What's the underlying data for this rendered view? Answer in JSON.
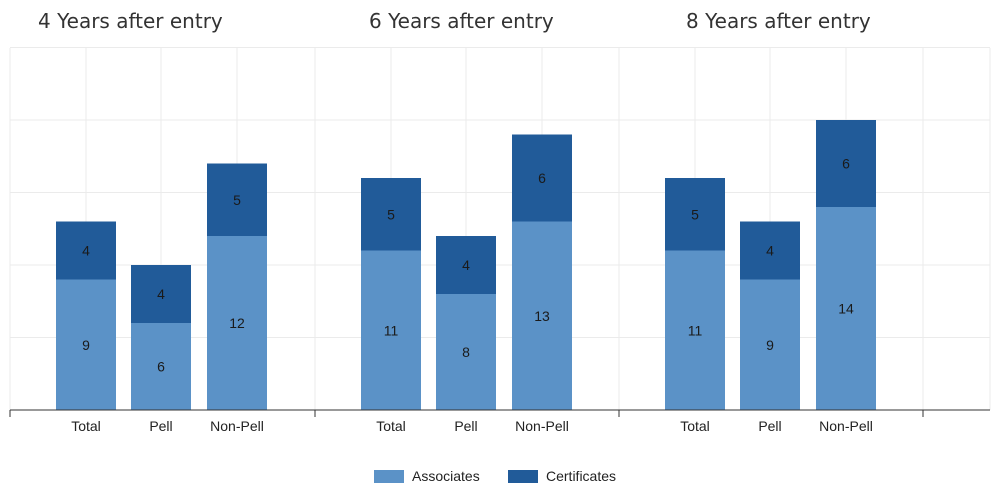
{
  "chart_data": {
    "type": "bar",
    "stacked": true,
    "grid": true,
    "legend_position": "bottom-center",
    "colors": {
      "Associates": "#5b92c7",
      "Certificates": "#215b99"
    },
    "panels": [
      {
        "title": "4 Years after entry",
        "categories": [
          "Total",
          "Pell",
          "Non-Pell"
        ],
        "series": [
          {
            "name": "Associates",
            "values": [
              9,
              6,
              12
            ]
          },
          {
            "name": "Certificates",
            "values": [
              4,
              4,
              5
            ]
          }
        ]
      },
      {
        "title": "6 Years after entry",
        "categories": [
          "Total",
          "Pell",
          "Non-Pell"
        ],
        "series": [
          {
            "name": "Associates",
            "values": [
              11,
              8,
              13
            ]
          },
          {
            "name": "Certificates",
            "values": [
              5,
              4,
              6
            ]
          }
        ]
      },
      {
        "title": "8 Years after entry",
        "categories": [
          "Total",
          "Pell",
          "Non-Pell"
        ],
        "series": [
          {
            "name": "Associates",
            "values": [
              11,
              9,
              14
            ]
          },
          {
            "name": "Certificates",
            "values": [
              5,
              4,
              6
            ]
          }
        ]
      }
    ],
    "ylim": [
      0,
      25
    ],
    "legend": [
      "Associates",
      "Certificates"
    ]
  }
}
